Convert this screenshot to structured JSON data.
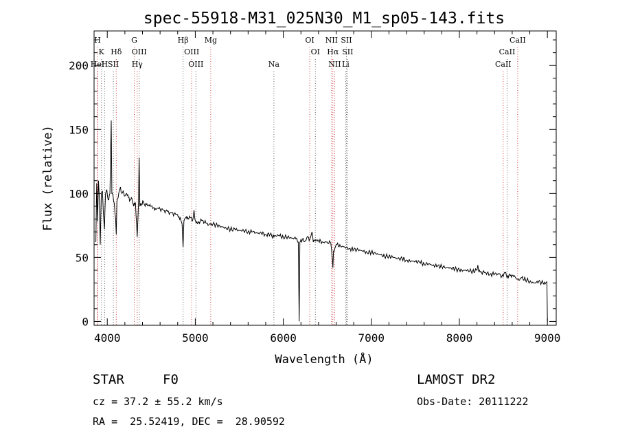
{
  "chart_data": {
    "type": "line",
    "title": "spec-55918-M31_025N30_M1_sp05-143.fits",
    "xlabel": "Wavelength (Å)",
    "ylabel": "Flux (relative)",
    "xlim": [
      3850,
      9100
    ],
    "ylim": [
      -3,
      227
    ],
    "xticks": [
      4000,
      5000,
      6000,
      7000,
      8000,
      9000
    ],
    "yticks": [
      0,
      50,
      100,
      150,
      200
    ],
    "grid": false,
    "series": [
      {
        "points": [
          [
            3870,
            62
          ],
          [
            3880,
            108
          ],
          [
            3890,
            78
          ],
          [
            3900,
            110
          ],
          [
            3910,
            96
          ],
          [
            3920,
            60
          ],
          [
            3933,
            100
          ],
          [
            3945,
            102
          ],
          [
            3955,
            85
          ],
          [
            3968,
            72
          ],
          [
            3980,
            100
          ],
          [
            3995,
            103
          ],
          [
            4010,
            95
          ],
          [
            4030,
            100
          ],
          [
            4045,
            157
          ],
          [
            4052,
            100
          ],
          [
            4065,
            98
          ],
          [
            4080,
            92
          ],
          [
            4095,
            80
          ],
          [
            4102,
            68
          ],
          [
            4110,
            94
          ],
          [
            4130,
            100
          ],
          [
            4150,
            105
          ],
          [
            4165,
            100
          ],
          [
            4180,
            102
          ],
          [
            4200,
            98
          ],
          [
            4220,
            100
          ],
          [
            4240,
            97
          ],
          [
            4260,
            95
          ],
          [
            4280,
            96
          ],
          [
            4300,
            90
          ],
          [
            4320,
            93
          ],
          [
            4340,
            66
          ],
          [
            4355,
            92
          ],
          [
            4362,
            128
          ],
          [
            4370,
            90
          ],
          [
            4390,
            92
          ],
          [
            4410,
            94
          ],
          [
            4430,
            90
          ],
          [
            4450,
            92
          ],
          [
            4470,
            91
          ],
          [
            4500,
            90
          ],
          [
            4530,
            89
          ],
          [
            4560,
            88
          ],
          [
            4600,
            88
          ],
          [
            4640,
            87
          ],
          [
            4680,
            86
          ],
          [
            4720,
            85
          ],
          [
            4760,
            84
          ],
          [
            4800,
            83
          ],
          [
            4830,
            81
          ],
          [
            4850,
            76
          ],
          [
            4861,
            58
          ],
          [
            4870,
            78
          ],
          [
            4890,
            81
          ],
          [
            4920,
            80
          ],
          [
            4950,
            81
          ],
          [
            4970,
            79
          ],
          [
            4985,
            87
          ],
          [
            4995,
            80
          ],
          [
            5010,
            77
          ],
          [
            5040,
            78
          ],
          [
            5080,
            79
          ],
          [
            5120,
            77
          ],
          [
            5160,
            76
          ],
          [
            5200,
            76
          ],
          [
            5250,
            75
          ],
          [
            5300,
            74
          ],
          [
            5350,
            73
          ],
          [
            5400,
            72
          ],
          [
            5450,
            72
          ],
          [
            5500,
            71
          ],
          [
            5550,
            71
          ],
          [
            5600,
            70
          ],
          [
            5650,
            70
          ],
          [
            5700,
            69
          ],
          [
            5750,
            69
          ],
          [
            5800,
            68
          ],
          [
            5850,
            68
          ],
          [
            5893,
            66
          ],
          [
            5900,
            67
          ],
          [
            5950,
            67
          ],
          [
            6000,
            66
          ],
          [
            6050,
            66
          ],
          [
            6100,
            65
          ],
          [
            6150,
            65
          ],
          [
            6170,
            62
          ],
          [
            6180,
            0
          ],
          [
            6188,
            62
          ],
          [
            6200,
            64
          ],
          [
            6250,
            63
          ],
          [
            6280,
            66
          ],
          [
            6300,
            64
          ],
          [
            6325,
            70
          ],
          [
            6340,
            62
          ],
          [
            6370,
            64
          ],
          [
            6400,
            63
          ],
          [
            6450,
            62
          ],
          [
            6500,
            62
          ],
          [
            6540,
            61
          ],
          [
            6555,
            50
          ],
          [
            6563,
            42
          ],
          [
            6570,
            55
          ],
          [
            6600,
            60
          ],
          [
            6650,
            59
          ],
          [
            6700,
            58
          ],
          [
            6750,
            57
          ],
          [
            6800,
            56
          ],
          [
            6850,
            56
          ],
          [
            6900,
            55
          ],
          [
            6950,
            54
          ],
          [
            7000,
            54
          ],
          [
            7050,
            53
          ],
          [
            7100,
            52
          ],
          [
            7150,
            51
          ],
          [
            7200,
            51
          ],
          [
            7250,
            50
          ],
          [
            7300,
            49
          ],
          [
            7350,
            49
          ],
          [
            7400,
            48
          ],
          [
            7450,
            47
          ],
          [
            7500,
            47
          ],
          [
            7550,
            46
          ],
          [
            7600,
            45
          ],
          [
            7650,
            45
          ],
          [
            7700,
            44
          ],
          [
            7750,
            43
          ],
          [
            7800,
            43
          ],
          [
            7850,
            42
          ],
          [
            7900,
            42
          ],
          [
            7950,
            41
          ],
          [
            8000,
            40
          ],
          [
            8050,
            40
          ],
          [
            8100,
            40
          ],
          [
            8150,
            39
          ],
          [
            8200,
            40
          ],
          [
            8210,
            44
          ],
          [
            8220,
            39
          ],
          [
            8300,
            38
          ],
          [
            8350,
            37
          ],
          [
            8400,
            37
          ],
          [
            8450,
            37
          ],
          [
            8498,
            35
          ],
          [
            8520,
            38
          ],
          [
            8542,
            34
          ],
          [
            8570,
            37
          ],
          [
            8600,
            36
          ],
          [
            8640,
            34
          ],
          [
            8662,
            33
          ],
          [
            8700,
            34
          ],
          [
            8750,
            33
          ],
          [
            8800,
            31
          ],
          [
            8850,
            30
          ],
          [
            8900,
            31
          ],
          [
            8950,
            30
          ],
          [
            8995,
            31
          ],
          [
            9000,
            0
          ]
        ]
      }
    ],
    "line_markers": [
      {
        "label": "H",
        "x": 3889,
        "row": 0
      },
      {
        "label": "K",
        "x": 3934,
        "row": 1
      },
      {
        "label": "HeI",
        "x": 3889,
        "row": 2
      },
      {
        "label": "H",
        "x": 3970,
        "row": 2
      },
      {
        "label": "Hδ",
        "x": 4102,
        "row": 1
      },
      {
        "label": "SII",
        "x": 4069,
        "row": 2
      },
      {
        "label": "G",
        "x": 4307,
        "row": 0
      },
      {
        "label": "OIII",
        "x": 4363,
        "row": 1
      },
      {
        "label": "Hγ",
        "x": 4340,
        "row": 2
      },
      {
        "label": "Hβ",
        "x": 4861,
        "row": 0
      },
      {
        "label": "OIII",
        "x": 4959,
        "row": 1
      },
      {
        "label": "OIII",
        "x": 5007,
        "row": 2
      },
      {
        "label": "Mg",
        "x": 5175,
        "row": 0
      },
      {
        "label": "Na",
        "x": 5893,
        "row": 2
      },
      {
        "label": "OI",
        "x": 6300,
        "row": 0
      },
      {
        "label": "OI",
        "x": 6364,
        "row": 1
      },
      {
        "label": "NII",
        "x": 6548,
        "row": 0
      },
      {
        "label": "SII",
        "x": 6717,
        "row": 0
      },
      {
        "label": "Hα",
        "x": 6563,
        "row": 1
      },
      {
        "label": "SII",
        "x": 6731,
        "row": 1
      },
      {
        "label": "NII",
        "x": 6584,
        "row": 2
      },
      {
        "label": "Li",
        "x": 6708,
        "row": 2
      },
      {
        "label": "CaII",
        "x": 8662,
        "row": 0
      },
      {
        "label": "CaII",
        "x": 8542,
        "row": 1
      },
      {
        "label": "CaII",
        "x": 8498,
        "row": 2
      }
    ]
  },
  "info": {
    "object_class": "STAR",
    "subclass": "F0",
    "survey": "LAMOST DR2",
    "redshift": "cz = 37.2 ± 55.2 km/s",
    "obs_date": "Obs-Date: 20111222",
    "coords": "RA =  25.52419, DEC =  28.90592"
  },
  "colors": {
    "spectrum": "#000000",
    "marker_line": "#d04040",
    "marker_line_alt": "#606060",
    "axes": "#000000"
  }
}
